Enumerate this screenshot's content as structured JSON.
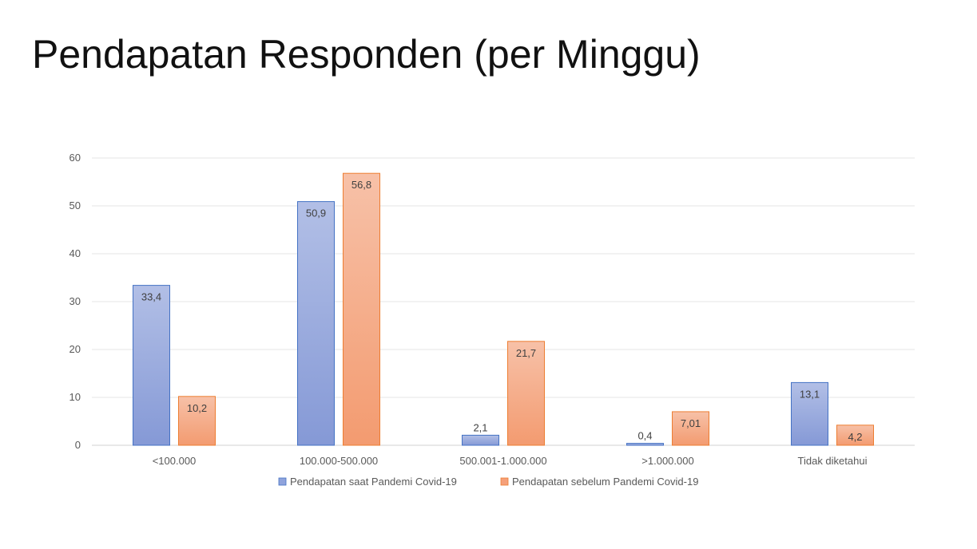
{
  "slide": {
    "title": "Pendapatan Responden (per Minggu)"
  },
  "chart_data": {
    "type": "bar",
    "categories": [
      "<100.000",
      "100.000-500.000",
      "500.001-1.000.000",
      ">1.000.000",
      "Tidak diketahui"
    ],
    "series": [
      {
        "name": "Pendapatan saat Pandemi Covid-19",
        "values": [
          33.4,
          50.9,
          2.1,
          0.4,
          13.1
        ],
        "labels": [
          "33,4",
          "50,9",
          "2,1",
          "0,4",
          "13,1"
        ],
        "color": "#8FA3DC"
      },
      {
        "name": "Pendapatan sebelum Pandemi Covid-19",
        "values": [
          10.2,
          56.8,
          21.7,
          7.01,
          4.2
        ],
        "labels": [
          "10,2",
          "56,8",
          "21,7",
          "7,01",
          "4,2"
        ],
        "color": "#F5A07A"
      }
    ],
    "ylim": [
      0,
      60
    ],
    "yticks": [
      0,
      10,
      20,
      30,
      40,
      50,
      60
    ],
    "grid": true,
    "legend": "bottom"
  }
}
